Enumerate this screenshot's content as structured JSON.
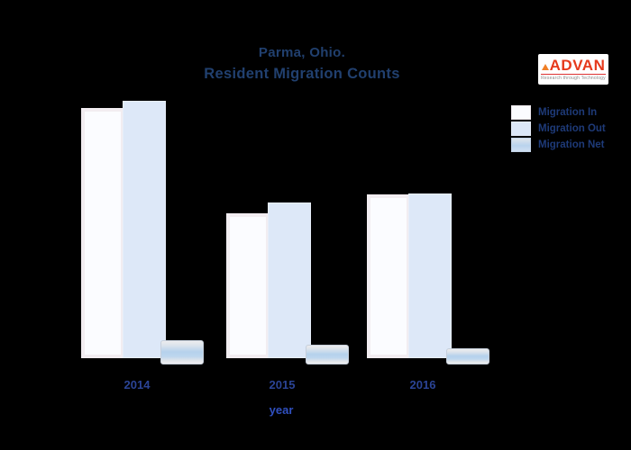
{
  "title": {
    "line1": "Parma, Ohio.",
    "line2": "Resident Migration Counts"
  },
  "logo": {
    "name": "ADVAN",
    "tagline": "Research through Technology",
    "text_color": "#e6391b"
  },
  "legend": {
    "position": "right",
    "items": [
      {
        "label": "Migration In",
        "color": "#fbfcff"
      },
      {
        "label": "Migration Out",
        "color": "#dce7f7"
      },
      {
        "label": "Migration Net",
        "color": "#b9d3ed"
      }
    ]
  },
  "x_axis": {
    "title": "year"
  },
  "chart_data": {
    "type": "bar",
    "categories": [
      "2014",
      "2015",
      "2016"
    ],
    "series": [
      {
        "name": "Migration In",
        "values": [
          278,
          161,
          182
        ]
      },
      {
        "name": "Migration Out",
        "values": [
          286,
          173,
          183
        ]
      },
      {
        "name": "Migration Net",
        "values": [
          27,
          22,
          18
        ]
      }
    ],
    "title": "Parma, Ohio. Resident Migration Counts",
    "xlabel": "year",
    "ylabel": "",
    "ylim": [
      0,
      300
    ],
    "grid": false,
    "legend_position": "right",
    "notes": "No y-axis ticks are visible; values are estimated relative magnitudes from bar heights (arbitrary units). Net bars are small pills drawn at the baseline.",
    "background_color": "#000000",
    "bar_colors": {
      "in": "#fbfcff",
      "out": "#dde8f8",
      "net": "#b5d1ec"
    }
  }
}
